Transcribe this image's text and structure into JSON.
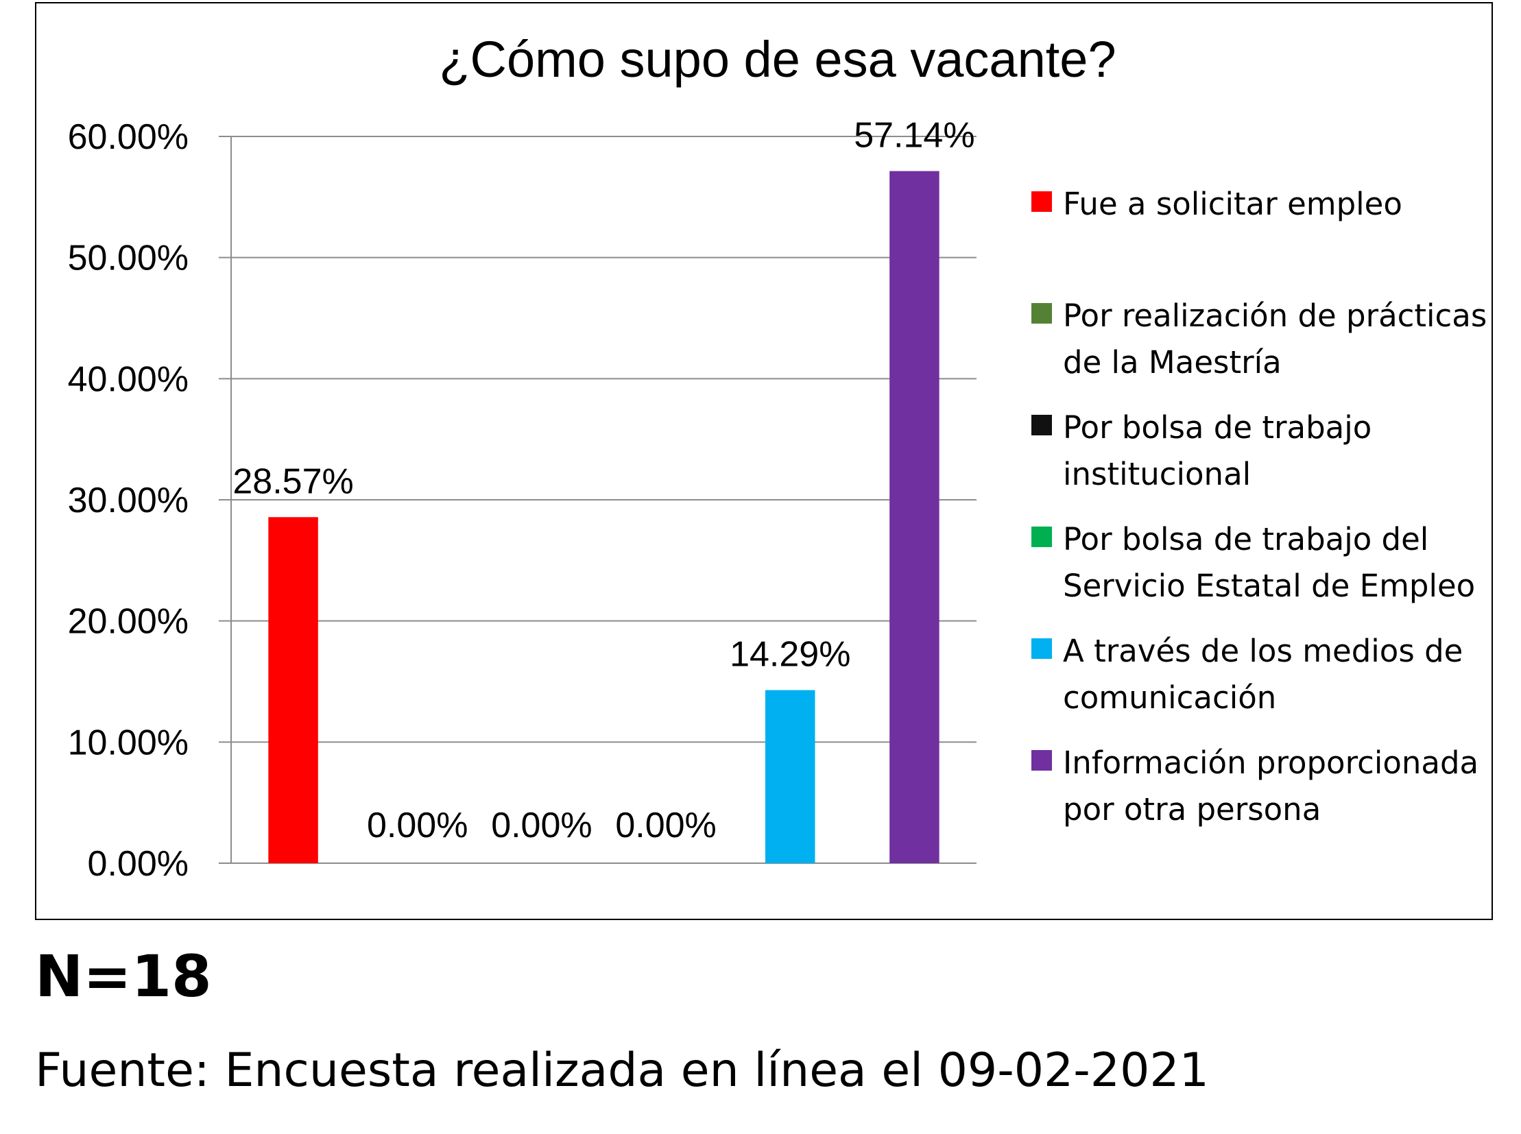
{
  "chart_data": {
    "type": "bar",
    "title": "¿Cómo supo de esa vacante?",
    "categories": [
      "Fue a solicitar empleo",
      "Por realización de prácticas de la Maestría",
      "Por bolsa de trabajo institucional",
      "Por bolsa de trabajo del Servicio Estatal de Empleo",
      "A través de los medios de comunicación",
      "Información proporcionada por otra persona"
    ],
    "values": [
      28.57,
      0.0,
      0.0,
      0.0,
      14.29,
      57.14
    ],
    "value_labels": [
      "28.57%",
      "0.00%",
      "0.00%",
      "0.00%",
      "14.29%",
      "57.14%"
    ],
    "colors": [
      "#ff0000",
      "#548235",
      "#111111",
      "#00b050",
      "#00b0f0",
      "#7030a0"
    ],
    "yticks": [
      "0.00%",
      "10.00%",
      "20.00%",
      "30.00%",
      "40.00%",
      "50.00%",
      "60.00%"
    ],
    "ylim": [
      0,
      60
    ],
    "grid": true,
    "legend_position": "right",
    "legend_lines": [
      [
        "Fue a solicitar empleo"
      ],
      [
        "Por realización de prácticas",
        "de la Maestría"
      ],
      [
        "Por bolsa de trabajo",
        "institucional"
      ],
      [
        "Por bolsa de trabajo del",
        "Servicio Estatal de Empleo"
      ],
      [
        "A través de los medios de",
        "comunicación"
      ],
      [
        "Información proporcionada",
        "por otra persona"
      ]
    ]
  },
  "notes": {
    "n": "N=18",
    "source": "Fuente: Encuesta realizada en línea el 09-02-2021"
  }
}
